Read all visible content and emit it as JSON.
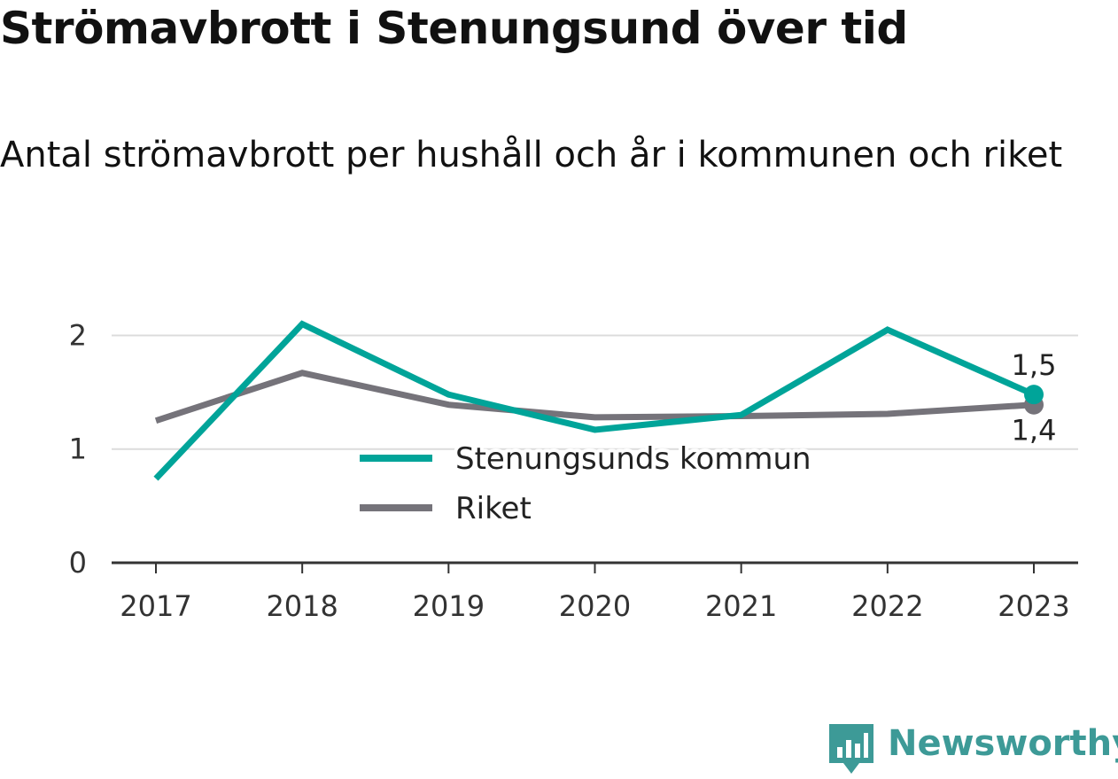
{
  "header": {
    "title": "Strömavbrott i Stenungsund över tid",
    "subtitle": "Antal strömavbrott per hushåll och år i kommunen och riket"
  },
  "brand": {
    "name": "Newsworthy",
    "icon": "bar-chart-speech-bubble-icon",
    "color": "#3d9a97"
  },
  "chart_data": {
    "type": "line",
    "title": "Strömavbrott i Stenungsund över tid",
    "subtitle": "Antal strömavbrott per hushåll och år i kommunen och riket",
    "xlabel": "",
    "ylabel": "",
    "x": [
      "2017",
      "2018",
      "2019",
      "2020",
      "2021",
      "2022",
      "2023"
    ],
    "ylim": [
      0,
      2.3
    ],
    "yticks": [
      0,
      1,
      2
    ],
    "ytick_labels": [
      "0",
      "1",
      "2"
    ],
    "grid": true,
    "legend_position": "center",
    "series": [
      {
        "name": "Stenungsunds kommun",
        "color": "#00a499",
        "values": [
          0.74,
          2.1,
          1.48,
          1.17,
          1.3,
          2.05,
          1.48
        ],
        "end_label": "1,5"
      },
      {
        "name": "Riket",
        "color": "#75737a",
        "values": [
          1.25,
          1.67,
          1.39,
          1.28,
          1.29,
          1.31,
          1.39
        ],
        "end_label": "1,4"
      }
    ]
  }
}
